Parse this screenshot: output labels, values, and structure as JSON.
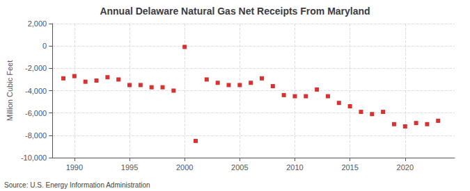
{
  "chart_data": {
    "type": "scatter",
    "title": "Annual Delaware Natural Gas Net Receipts From Maryland",
    "ylabel": "Million Cubic Feet",
    "annotations": [
      "Source: U.S. Energy Information Administration"
    ],
    "x": [
      1989,
      1990,
      1991,
      1992,
      1993,
      1994,
      1995,
      1996,
      1997,
      1998,
      1999,
      2000,
      2001,
      2002,
      2003,
      2004,
      2005,
      2006,
      2007,
      2008,
      2009,
      2010,
      2011,
      2012,
      2013,
      2014,
      2015,
      2016,
      2017,
      2018,
      2019,
      2020,
      2021,
      2022,
      2023
    ],
    "values": [
      -2900,
      -2700,
      -3200,
      -3100,
      -2800,
      -3000,
      -3500,
      -3500,
      -3700,
      -3700,
      -4000,
      -85,
      -8500,
      -3000,
      -3300,
      -3500,
      -3500,
      -3300,
      -2900,
      -3600,
      -4400,
      -4500,
      -4500,
      -3900,
      -4500,
      -5100,
      -5400,
      -5900,
      -6100,
      -5900,
      -7000,
      -7200,
      -6900,
      -7000,
      -6700
    ],
    "color": "#cc0000",
    "marker": "square",
    "xlim": [
      1988.0,
      2024.5
    ],
    "xticks": [
      1990,
      1995,
      2000,
      2005,
      2010,
      2015,
      2020
    ],
    "ylim": [
      -10000,
      2000
    ],
    "yticks": [
      {
        "value": 2000,
        "label": "2,000"
      },
      0,
      {
        "value": -2000,
        "label": "-2,000"
      },
      {
        "value": -4000,
        "label": "-4,000"
      },
      {
        "value": -6000,
        "label": "-6,000"
      },
      {
        "value": -8000,
        "label": "-8,000"
      },
      {
        "value": -10000,
        "label": "-10,000"
      }
    ],
    "grid": true
  }
}
